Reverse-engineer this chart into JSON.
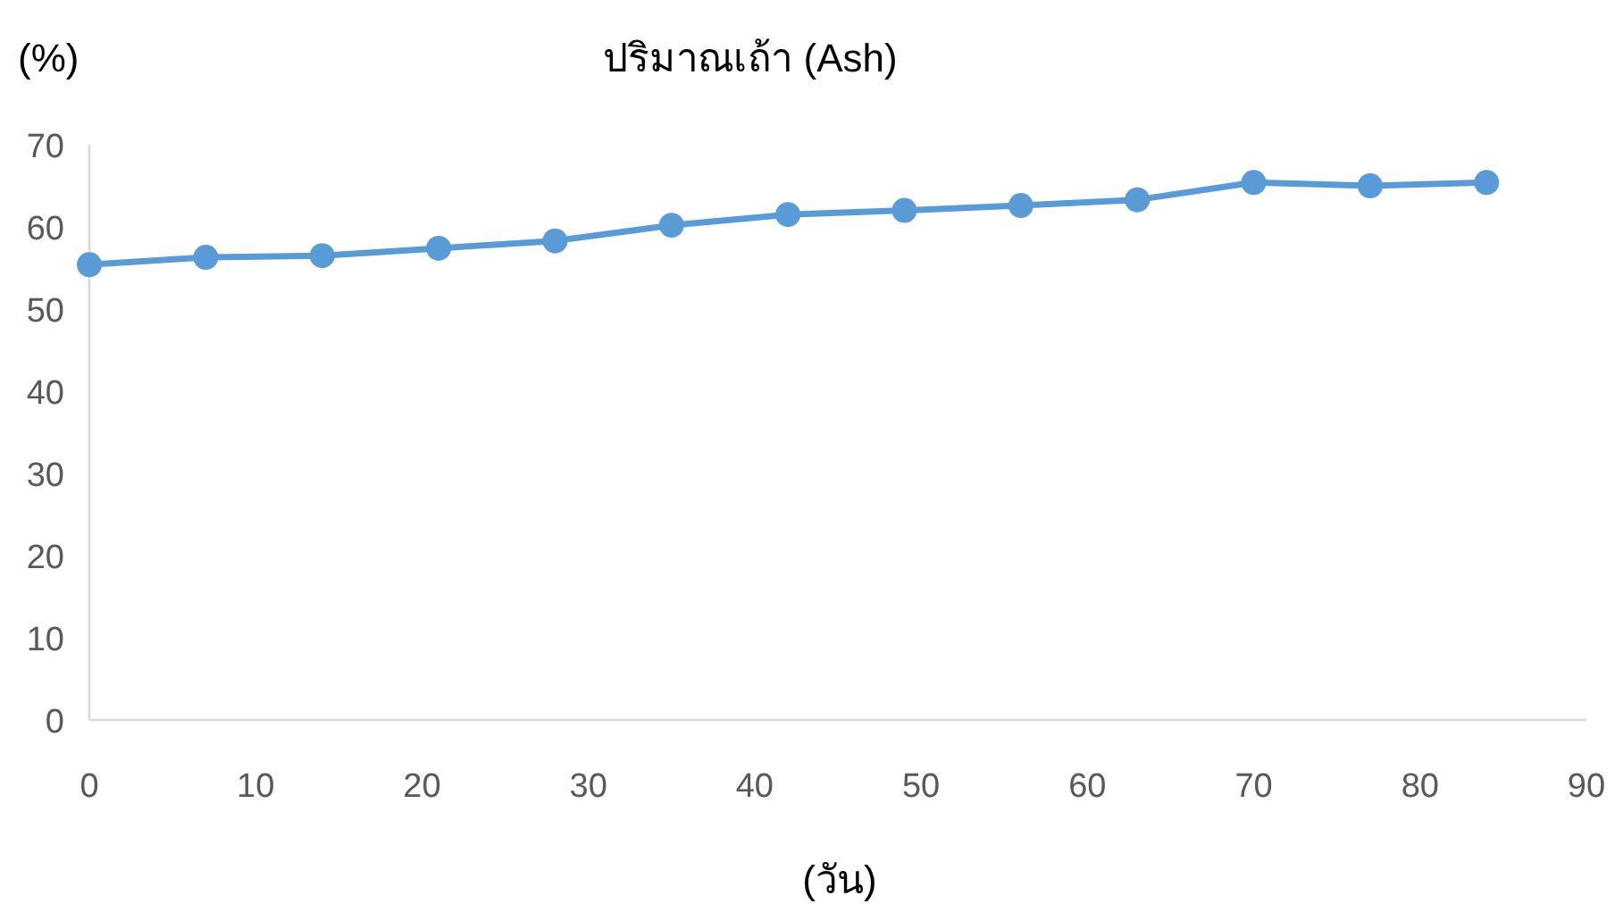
{
  "chart_data": {
    "type": "line",
    "title": "ปริมาณเถ้า (Ash)",
    "ylabel": "(%)",
    "xlabel": "(วัน)",
    "x": [
      0,
      7,
      14,
      21,
      28,
      35,
      42,
      49,
      56,
      63,
      70,
      77,
      84
    ],
    "series": [
      {
        "color": "#5b9bd5",
        "values": [
          55.4,
          56.3,
          56.5,
          57.4,
          58.3,
          60.2,
          61.5,
          62.0,
          62.6,
          63.3,
          65.4,
          65.0,
          65.4
        ]
      }
    ],
    "xlim": [
      0,
      90
    ],
    "xticks": [
      0,
      10,
      20,
      30,
      40,
      50,
      60,
      70,
      80,
      90
    ],
    "ylim": [
      0,
      70
    ],
    "yticks": [
      0,
      10,
      20,
      30,
      40,
      50,
      60,
      70
    ],
    "grid": false,
    "marker": "circle",
    "line_style": "solid"
  }
}
